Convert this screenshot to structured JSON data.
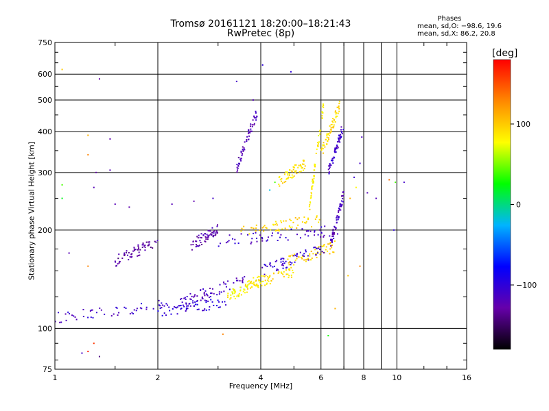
{
  "title": {
    "line1": "Tromsø 20161121 18:20:00–18:21:43",
    "line2": "RwPretec (8p)"
  },
  "phase_stats": {
    "heading": "Phases",
    "o_line": "mean, sd,O: −98.6, 19.6",
    "x_line": "mean, sd,X:  86.2, 20.8"
  },
  "colorbar": {
    "label": "[deg]",
    "ticks": [
      "100",
      "0",
      "−100"
    ],
    "tick_values": [
      100,
      0,
      -100
    ],
    "range": [
      -180,
      180
    ],
    "colors": [
      "#000000",
      "#6600aa",
      "#0000ff",
      "#00b4ff",
      "#00ff00",
      "#ffff00",
      "#ff8800",
      "#ff0000"
    ]
  },
  "chart_data": {
    "type": "scatter",
    "title": "Tromsø 20161121 18:20:00–18:21:43 RwPretec (8p)",
    "xlabel": "Frequency [MHz]",
    "ylabel": "Stationary phase Virtual Height [km]",
    "x_scale": "log",
    "y_scale": "log",
    "xlim": [
      1,
      16
    ],
    "ylim": [
      75,
      750
    ],
    "x_ticks": [
      1,
      2,
      4,
      6,
      8,
      10,
      16
    ],
    "x_tick_labels": [
      "1",
      "2",
      "4",
      "6",
      "8",
      "10",
      "16"
    ],
    "x_minor": [
      7,
      9
    ],
    "y_ticks": [
      75,
      100,
      200,
      300,
      400,
      500,
      600,
      750
    ],
    "y_tick_labels": [
      "75",
      "100",
      "200",
      "300",
      "400",
      "500",
      "600",
      "750"
    ],
    "grid": true,
    "color_variable": "phase [deg]",
    "trace_segments": [
      {
        "x0": 1.0,
        "x1": 2.5,
        "y0": 108,
        "y1": 120,
        "phase": -110
      },
      {
        "x0": 2.0,
        "x1": 3.2,
        "y0": 113,
        "y1": 120,
        "phase": -100
      },
      {
        "x0": 2.4,
        "x1": 3.6,
        "y0": 122,
        "y1": 140,
        "phase": -115
      },
      {
        "x0": 3.2,
        "x1": 4.0,
        "y0": 125,
        "y1": 140,
        "phase": 80
      },
      {
        "x0": 3.6,
        "x1": 5.0,
        "y0": 135,
        "y1": 150,
        "phase": 90
      },
      {
        "x0": 4.8,
        "x1": 6.6,
        "y0": 160,
        "y1": 178,
        "phase": 95
      },
      {
        "x0": 4.0,
        "x1": 6.2,
        "y0": 150,
        "y1": 175,
        "phase": -105
      },
      {
        "x0": 3.0,
        "x1": 6.8,
        "y0": 185,
        "y1": 200,
        "phase": -110
      },
      {
        "x0": 3.5,
        "x1": 6.0,
        "y0": 198,
        "y1": 215,
        "phase": 95
      },
      {
        "x0": 1.5,
        "x1": 2.0,
        "y0": 160,
        "y1": 185,
        "phase": -130
      },
      {
        "x0": 2.5,
        "x1": 3.0,
        "y0": 180,
        "y1": 200,
        "phase": -125
      },
      {
        "x0": 3.4,
        "x1": 3.9,
        "y0": 310,
        "y1": 460,
        "phase": -120
      },
      {
        "x0": 4.5,
        "x1": 5.4,
        "y0": 280,
        "y1": 320,
        "phase": 90
      },
      {
        "x0": 5.5,
        "x1": 6.1,
        "y0": 220,
        "y1": 480,
        "phase": 85
      },
      {
        "x0": 6.3,
        "x1": 7.0,
        "y0": 300,
        "y1": 420,
        "phase": -110
      },
      {
        "x0": 6.4,
        "x1": 7.0,
        "y0": 180,
        "y1": 260,
        "phase": -120
      },
      {
        "x0": 6.0,
        "x1": 6.8,
        "y0": 340,
        "y1": 480,
        "phase": 95
      }
    ],
    "scattered_points": [
      {
        "x": 1.05,
        "y": 620,
        "phase": 100
      },
      {
        "x": 1.35,
        "y": 580,
        "phase": -130
      },
      {
        "x": 1.25,
        "y": 390,
        "phase": 110
      },
      {
        "x": 1.25,
        "y": 340,
        "phase": 130
      },
      {
        "x": 1.05,
        "y": 275,
        "phase": 40
      },
      {
        "x": 1.05,
        "y": 250,
        "phase": 20
      },
      {
        "x": 1.3,
        "y": 270,
        "phase": -120
      },
      {
        "x": 1.32,
        "y": 300,
        "phase": -130
      },
      {
        "x": 1.45,
        "y": 305,
        "phase": -120
      },
      {
        "x": 1.45,
        "y": 380,
        "phase": -125
      },
      {
        "x": 1.5,
        "y": 240,
        "phase": -120
      },
      {
        "x": 1.65,
        "y": 235,
        "phase": -125
      },
      {
        "x": 1.25,
        "y": 155,
        "phase": 130
      },
      {
        "x": 1.1,
        "y": 170,
        "phase": -120
      },
      {
        "x": 1.3,
        "y": 90,
        "phase": 160
      },
      {
        "x": 1.25,
        "y": 85,
        "phase": 170
      },
      {
        "x": 1.2,
        "y": 84,
        "phase": -110
      },
      {
        "x": 1.35,
        "y": 82,
        "phase": -140
      },
      {
        "x": 3.1,
        "y": 96,
        "phase": 130
      },
      {
        "x": 4.05,
        "y": 640,
        "phase": -100
      },
      {
        "x": 4.9,
        "y": 610,
        "phase": -100
      },
      {
        "x": 3.4,
        "y": 570,
        "phase": -110
      },
      {
        "x": 3.8,
        "y": 500,
        "phase": -120
      },
      {
        "x": 4.4,
        "y": 280,
        "phase": 40
      },
      {
        "x": 4.25,
        "y": 265,
        "phase": -20
      },
      {
        "x": 2.9,
        "y": 250,
        "phase": -110
      },
      {
        "x": 2.55,
        "y": 245,
        "phase": -125
      },
      {
        "x": 2.2,
        "y": 240,
        "phase": -120
      },
      {
        "x": 7.9,
        "y": 385,
        "phase": -115
      },
      {
        "x": 7.8,
        "y": 320,
        "phase": -110
      },
      {
        "x": 7.5,
        "y": 290,
        "phase": -105
      },
      {
        "x": 7.6,
        "y": 270,
        "phase": 80
      },
      {
        "x": 7.3,
        "y": 250,
        "phase": 110
      },
      {
        "x": 8.2,
        "y": 260,
        "phase": -120
      },
      {
        "x": 8.7,
        "y": 250,
        "phase": -120
      },
      {
        "x": 9.5,
        "y": 285,
        "phase": 140
      },
      {
        "x": 9.9,
        "y": 280,
        "phase": 40
      },
      {
        "x": 10.5,
        "y": 280,
        "phase": -110
      },
      {
        "x": 9.8,
        "y": 200,
        "phase": -100
      },
      {
        "x": 7.8,
        "y": 155,
        "phase": 130
      },
      {
        "x": 7.2,
        "y": 145,
        "phase": 100
      },
      {
        "x": 6.3,
        "y": 95,
        "phase": 30
      },
      {
        "x": 6.6,
        "y": 115,
        "phase": 110
      }
    ]
  }
}
